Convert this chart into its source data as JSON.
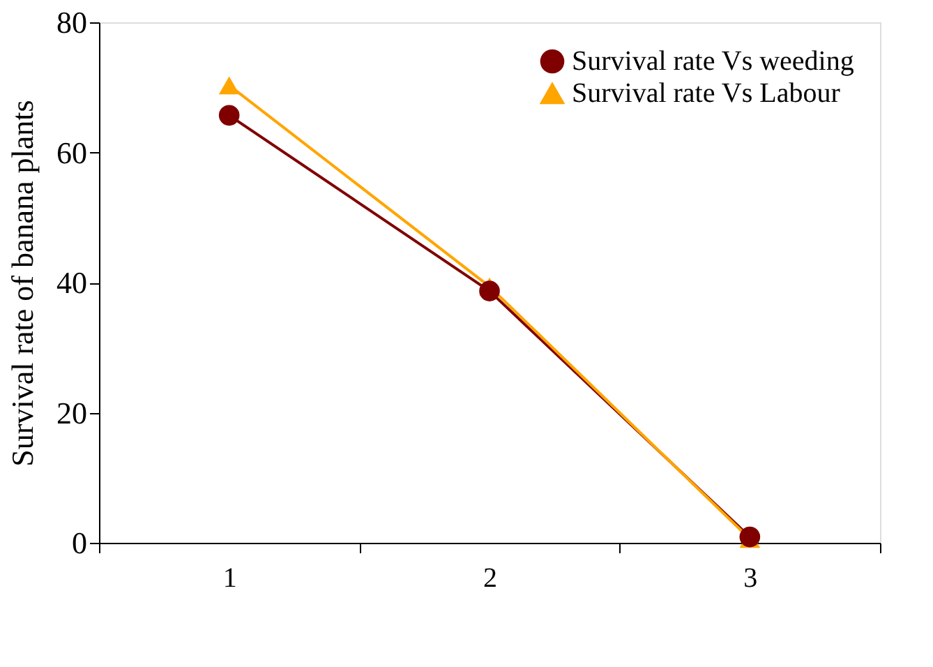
{
  "chart_data": {
    "type": "line",
    "ylabel": "Survival rate of banana plants",
    "categories": [
      "1",
      "2",
      "3"
    ],
    "series": [
      {
        "name": "Survival rate Vs weeding",
        "color": "#800000",
        "marker": "circle",
        "values": [
          65.7,
          38.7,
          0.9
        ]
      },
      {
        "name": "Survival rate Vs Labour",
        "color": "#ffa500",
        "marker": "triangle",
        "values": [
          70.3,
          39.4,
          0.6
        ]
      }
    ],
    "ylim": [
      0,
      80
    ],
    "yticks": [
      0,
      20,
      40,
      60,
      80
    ],
    "grid": false,
    "legend": "top right",
    "line_style": "solid"
  }
}
